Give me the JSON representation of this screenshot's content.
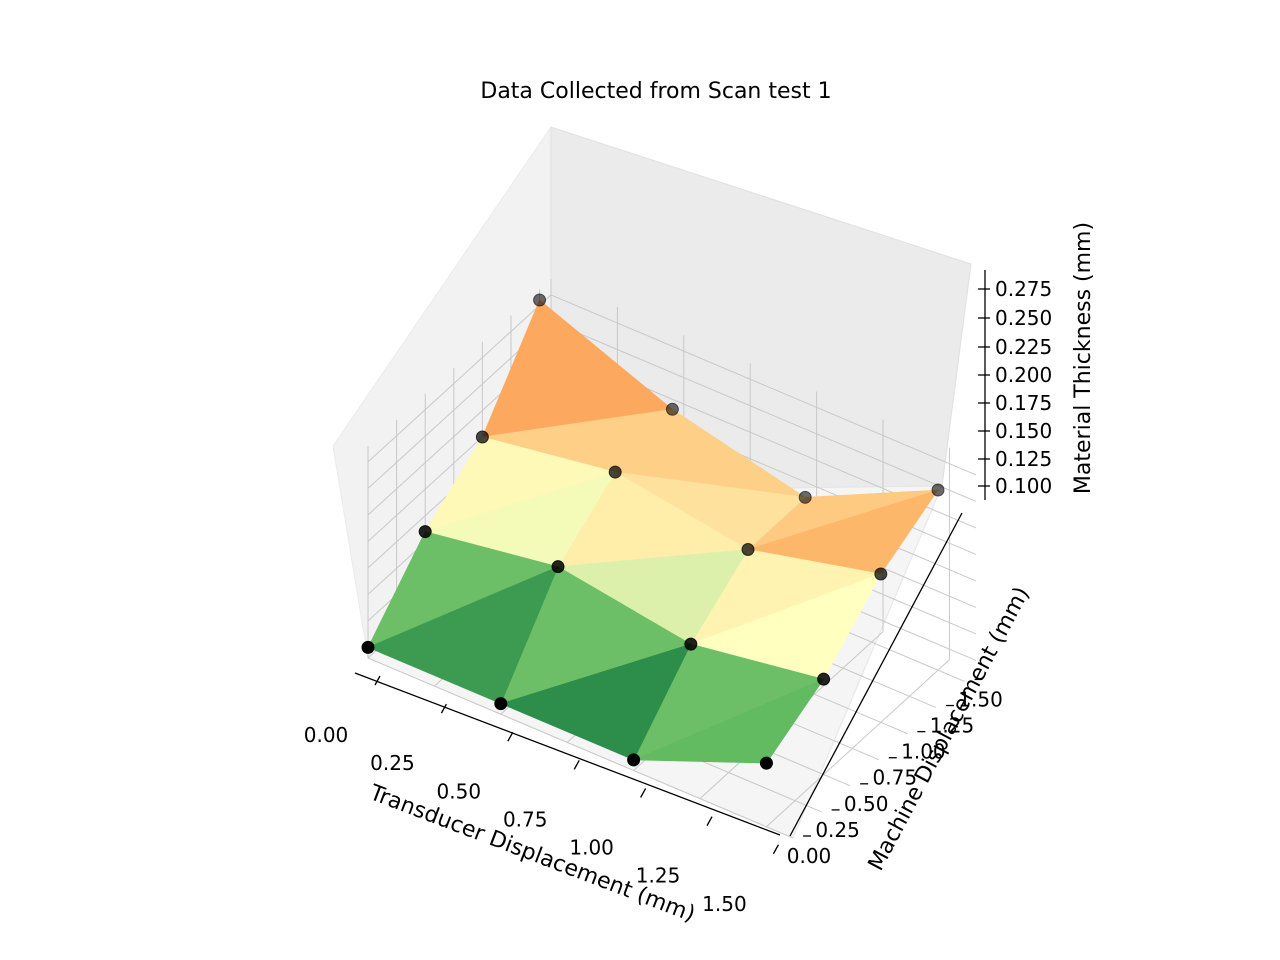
{
  "chart_data": {
    "type": "surface3d",
    "title": "Data Collected from Scan test 1",
    "xlabel": "Transducer Displacement (mm)",
    "ylabel": "Machine Displacement (mm)",
    "zlabel": "Material Thickness (mm)",
    "xticks": [
      "0.00",
      "0.25",
      "0.50",
      "0.75",
      "1.00",
      "1.25",
      "1.50"
    ],
    "yticks": [
      "0.00",
      "0.25",
      "0.50",
      "0.75",
      "1.00",
      "1.25",
      "1.50"
    ],
    "zticks": [
      "0.100",
      "0.125",
      "0.150",
      "0.175",
      "0.200",
      "0.225",
      "0.250",
      "0.275"
    ],
    "colormap": "RdYlGn_r",
    "grid": true,
    "points": [
      {
        "x": 0.0,
        "y": 0.0,
        "z": 0.1
      },
      {
        "x": 0.5,
        "y": 0.0,
        "z": 0.1
      },
      {
        "x": 1.0,
        "y": 0.0,
        "z": 0.1
      },
      {
        "x": 1.5,
        "y": 0.0,
        "z": 0.15
      },
      {
        "x": 0.0,
        "y": 0.5,
        "z": 0.16
      },
      {
        "x": 0.5,
        "y": 0.5,
        "z": 0.18
      },
      {
        "x": 1.0,
        "y": 0.5,
        "z": 0.16
      },
      {
        "x": 1.5,
        "y": 0.5,
        "z": 0.18
      },
      {
        "x": 0.0,
        "y": 1.0,
        "z": 0.2
      },
      {
        "x": 0.5,
        "y": 1.0,
        "z": 0.22
      },
      {
        "x": 1.0,
        "y": 1.0,
        "z": 0.2
      },
      {
        "x": 1.5,
        "y": 1.0,
        "z": 0.23
      },
      {
        "x": 0.0,
        "y": 1.5,
        "z": 0.28
      },
      {
        "x": 0.5,
        "y": 1.5,
        "z": 0.23
      },
      {
        "x": 1.0,
        "y": 1.5,
        "z": 0.2
      },
      {
        "x": 1.5,
        "y": 1.5,
        "z": 0.26
      }
    ]
  }
}
